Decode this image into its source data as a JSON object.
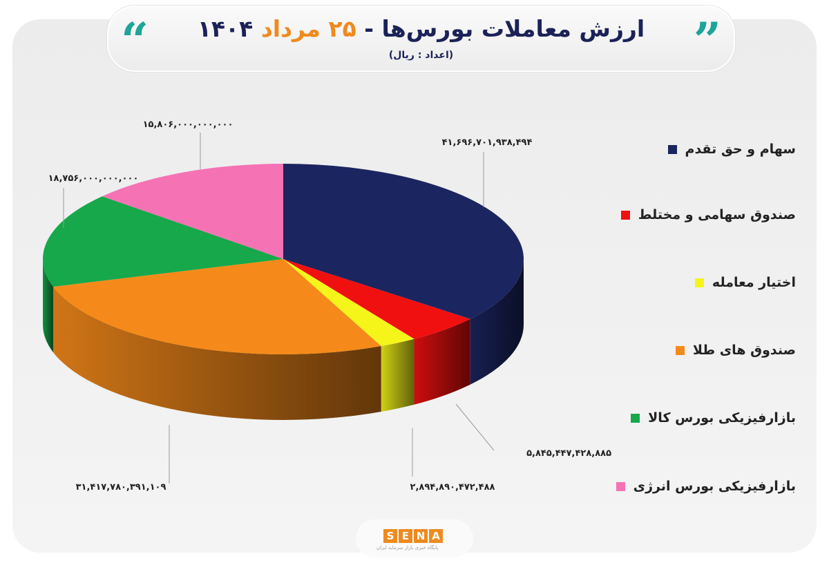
{
  "header": {
    "title_main": "ارزش معاملات بورس‌ها - ",
    "title_date": "۲۵ مرداد",
    "title_year": "۱۴۰۴",
    "subtitle": "(اعداد : ریال)"
  },
  "logo": {
    "text": [
      "S",
      "E",
      "N",
      "A"
    ],
    "subtitle": "پایگاه خبری بازار سرمایه ایران"
  },
  "chart_data": {
    "type": "pie",
    "style": "3d",
    "title": "ارزش معاملات بورس‌ها - ۲۵ مرداد ۱۴۰۴",
    "unit": "(اعداد : ریال)",
    "legend_position": "right",
    "slices": [
      {
        "name": "سهام و حق تقدم",
        "value": 41696701938494,
        "label": "۴۱,۶۹۶,۷۰۱,۹۳۸,۴۹۴",
        "color": "#1b2560"
      },
      {
        "name": "صندوق سهامی و مختلط",
        "value": 5845447428885,
        "label": "۵,۸۴۵,۴۴۷,۴۲۸,۸۸۵",
        "color": "#f01010"
      },
      {
        "name": "اختیار معامله",
        "value": 2894890472488,
        "label": "۲,۸۹۴,۸۹۰,۴۷۲,۴۸۸",
        "color": "#f5f51a"
      },
      {
        "name": "صندوق های طلا",
        "value": 31417780391109,
        "label": "۳۱,۴۱۷,۷۸۰,۳۹۱,۱۰۹",
        "color": "#f58a1a"
      },
      {
        "name": "بازارفیزیکی بورس کالا",
        "value": 18756000000000,
        "label": "۱۸,۷۵۶,۰۰۰,۰۰۰,۰۰۰",
        "color": "#16a84a"
      },
      {
        "name": "بازارفیزیکی بورس انرژی",
        "value": 15806000000000,
        "label": "۱۵,۸۰۶,۰۰۰,۰۰۰,۰۰۰",
        "color": "#f572b4"
      }
    ]
  }
}
